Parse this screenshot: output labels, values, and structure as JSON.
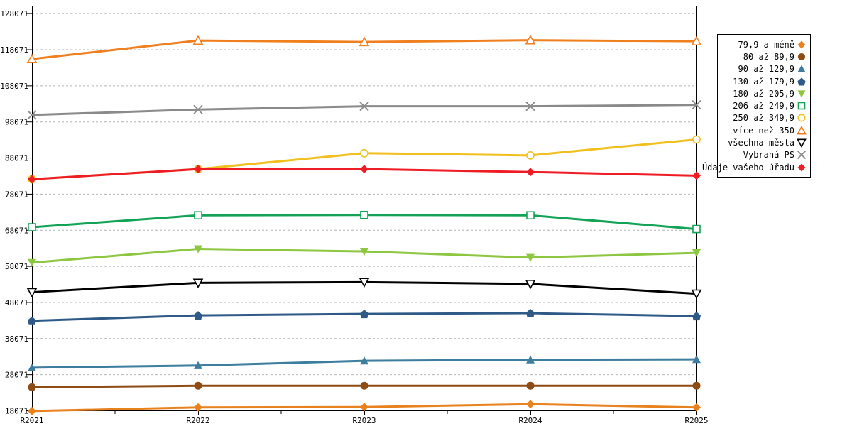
{
  "chart_data": {
    "type": "line",
    "title": "",
    "xlabel": "",
    "ylabel": "",
    "categories": [
      "R2021",
      "R2022",
      "R2023",
      "R2024",
      "R2025"
    ],
    "y_ticks": [
      18071,
      28071,
      38071,
      48071,
      58071,
      68071,
      78071,
      88071,
      98071,
      108071,
      118071,
      128071
    ],
    "ylim": [
      18071,
      130000
    ],
    "grid": "horizontal-dashed",
    "gridline_color": "#B4B4B4",
    "axis_color": "#000000",
    "legend_position": "right",
    "series": [
      {
        "name": "79,9 a méně",
        "marker": "diamond-filled",
        "color": "#E8821E",
        "values": [
          18000,
          19000,
          19100,
          19900,
          19000
        ]
      },
      {
        "name": "80 až 89,9",
        "marker": "circle-filled",
        "color": "#8F4B14",
        "values": [
          24600,
          25000,
          25000,
          25000,
          25000
        ]
      },
      {
        "name": "90 až 129,9",
        "marker": "triangle-up-filled",
        "color": "#3D7D9E",
        "values": [
          30000,
          30600,
          31900,
          32200,
          32300
        ]
      },
      {
        "name": "130 až 179,9",
        "marker": "pentagon-filled",
        "color": "#2F5A88",
        "values": [
          43000,
          44500,
          44900,
          45100,
          44300
        ]
      },
      {
        "name": "180 až 205,9",
        "marker": "triangle-down-filled",
        "color": "#8DC63F",
        "values": [
          59100,
          62900,
          62200,
          60500,
          61800
        ]
      },
      {
        "name": "206 až 249,9",
        "marker": "square-open",
        "color": "#12A357",
        "values": [
          68900,
          72200,
          72300,
          72200,
          68400
        ]
      },
      {
        "name": "250 až 349,9",
        "marker": "circle-open",
        "color": "#F2C01E",
        "values": [
          82200,
          85000,
          89400,
          88800,
          93200
        ]
      },
      {
        "name": "více než 350",
        "marker": "triangle-up-open",
        "color": "#F07F1D",
        "values": [
          115500,
          120600,
          120200,
          120700,
          120400
        ]
      },
      {
        "name": "všechna města",
        "marker": "triangle-down-open",
        "color": "#000000",
        "values": [
          50900,
          53500,
          53700,
          53200,
          50500
        ]
      },
      {
        "name": "Vybraná PS",
        "marker": "x-cross",
        "color": "#8A8A8A",
        "values": [
          100000,
          101500,
          102400,
          102400,
          102800
        ]
      },
      {
        "name": "Údaje vašeho úřadu",
        "marker": "diamond-filled",
        "color": "#EE1C25",
        "values": [
          82200,
          85000,
          85000,
          84200,
          83200
        ]
      }
    ]
  }
}
